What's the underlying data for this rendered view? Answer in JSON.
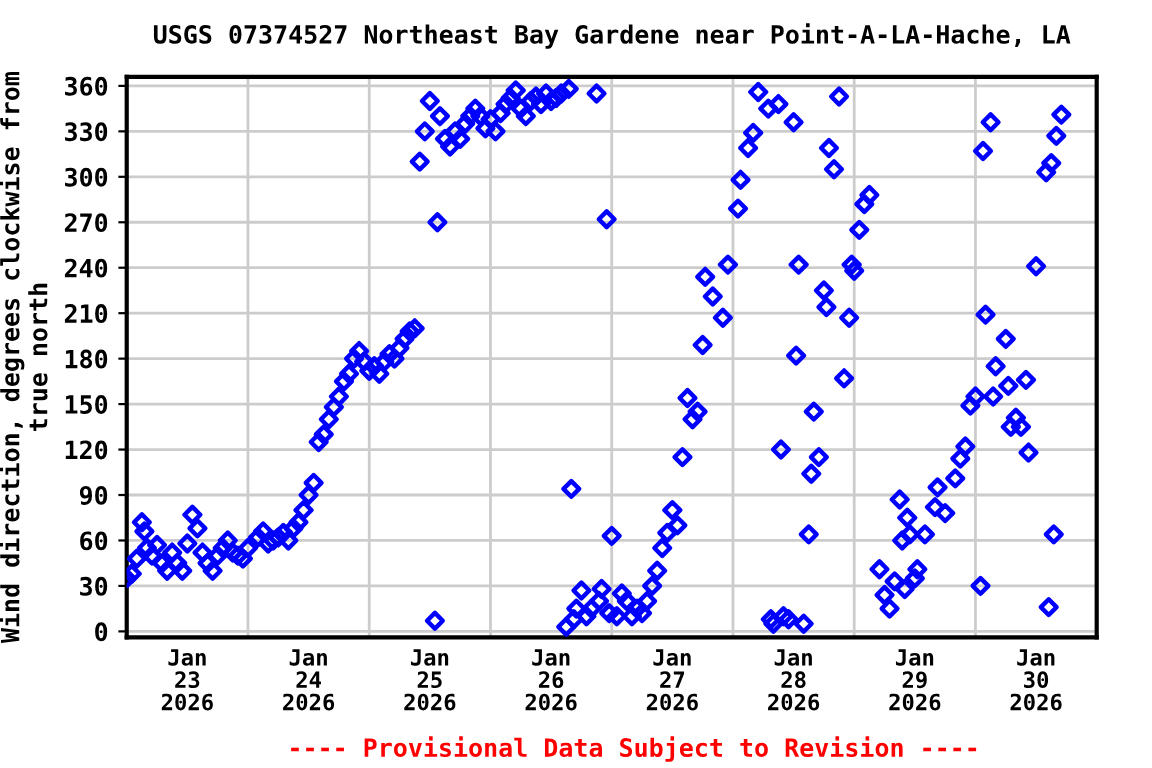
{
  "chart_data": {
    "type": "scatter",
    "title": "USGS 07374527 Northeast Bay Gardene near Point-A-LA-Hache, LA",
    "ylabel": "Wind direction, degrees clockwise from\ntrue north",
    "annotations": [
      "---- Provisional Data Subject to Revision ----"
    ],
    "marker": "diamond",
    "grid": true,
    "xlim": [
      "2026-01-23T00:00",
      "2026-01-31T00:00"
    ],
    "xticks": [
      {
        "value": "2026-01-23T00:00",
        "label": null
      },
      {
        "value": "2026-01-23T12:00",
        "label": "Jan\n23\n2026"
      },
      {
        "value": "2026-01-24T00:00",
        "label": null
      },
      {
        "value": "2026-01-24T12:00",
        "label": "Jan\n24\n2026"
      },
      {
        "value": "2026-01-25T00:00",
        "label": null
      },
      {
        "value": "2026-01-25T12:00",
        "label": "Jan\n25\n2026"
      },
      {
        "value": "2026-01-26T00:00",
        "label": null
      },
      {
        "value": "2026-01-26T12:00",
        "label": "Jan\n26\n2026"
      },
      {
        "value": "2026-01-27T00:00",
        "label": null
      },
      {
        "value": "2026-01-27T12:00",
        "label": "Jan\n27\n2026"
      },
      {
        "value": "2026-01-28T00:00",
        "label": null
      },
      {
        "value": "2026-01-28T12:00",
        "label": "Jan\n28\n2026"
      },
      {
        "value": "2026-01-29T00:00",
        "label": null
      },
      {
        "value": "2026-01-29T12:00",
        "label": "Jan\n29\n2026"
      },
      {
        "value": "2026-01-30T00:00",
        "label": null
      },
      {
        "value": "2026-01-30T12:00",
        "label": "Jan\n30\n2026"
      },
      {
        "value": "2026-01-31T00:00",
        "label": null
      }
    ],
    "ylim": [
      -4,
      366
    ],
    "yticks": [
      0,
      30,
      60,
      90,
      120,
      150,
      180,
      210,
      240,
      270,
      300,
      330,
      360
    ],
    "series": [
      {
        "color": "#0000ff",
        "x": [
          "2026-01-23T00:00",
          "2026-01-23T01:00",
          "2026-01-23T02:00",
          "2026-01-23T03:00",
          "2026-01-23T03:30",
          "2026-01-23T04:00",
          "2026-01-23T05:00",
          "2026-01-23T06:00",
          "2026-01-23T07:00",
          "2026-01-23T08:00",
          "2026-01-23T09:00",
          "2026-01-23T10:00",
          "2026-01-23T11:00",
          "2026-01-23T12:00",
          "2026-01-23T13:00",
          "2026-01-23T14:00",
          "2026-01-23T15:00",
          "2026-01-23T16:00",
          "2026-01-23T17:00",
          "2026-01-23T18:00",
          "2026-01-23T19:00",
          "2026-01-23T20:00",
          "2026-01-23T21:00",
          "2026-01-23T22:00",
          "2026-01-23T23:00",
          "2026-01-24T00:00",
          "2026-01-24T02:00",
          "2026-01-24T03:00",
          "2026-01-24T04:00",
          "2026-01-24T05:00",
          "2026-01-24T06:00",
          "2026-01-24T07:00",
          "2026-01-24T08:00",
          "2026-01-24T09:00",
          "2026-01-24T10:00",
          "2026-01-24T11:00",
          "2026-01-24T12:00",
          "2026-01-24T13:00",
          "2026-01-24T14:00",
          "2026-01-24T15:00",
          "2026-01-24T16:00",
          "2026-01-24T17:00",
          "2026-01-24T18:00",
          "2026-01-24T19:00",
          "2026-01-24T20:00",
          "2026-01-24T21:00",
          "2026-01-24T22:00",
          "2026-01-24T23:00",
          "2026-01-25T00:00",
          "2026-01-25T01:00",
          "2026-01-25T02:00",
          "2026-01-25T03:00",
          "2026-01-25T04:00",
          "2026-01-25T05:00",
          "2026-01-25T06:00",
          "2026-01-25T07:00",
          "2026-01-25T08:00",
          "2026-01-25T09:00",
          "2026-01-25T10:00",
          "2026-01-25T11:00",
          "2026-01-25T12:00",
          "2026-01-25T13:00",
          "2026-01-25T13:30",
          "2026-01-25T14:00",
          "2026-01-25T15:00",
          "2026-01-25T16:00",
          "2026-01-25T17:00",
          "2026-01-25T18:00",
          "2026-01-25T19:00",
          "2026-01-25T20:00",
          "2026-01-25T21:00",
          "2026-01-25T22:00",
          "2026-01-25T23:00",
          "2026-01-26T00:00",
          "2026-01-26T01:00",
          "2026-01-26T02:00",
          "2026-01-26T03:00",
          "2026-01-26T04:00",
          "2026-01-26T05:00",
          "2026-01-26T06:00",
          "2026-01-26T07:00",
          "2026-01-26T08:00",
          "2026-01-26T09:00",
          "2026-01-26T10:00",
          "2026-01-26T11:00",
          "2026-01-26T12:00",
          "2026-01-26T13:00",
          "2026-01-26T14:00",
          "2026-01-26T15:00",
          "2026-01-26T15:30",
          "2026-01-26T16:00",
          "2026-01-26T16:30",
          "2026-01-26T17:00",
          "2026-01-26T18:00",
          "2026-01-26T19:00",
          "2026-01-26T20:00",
          "2026-01-26T21:00",
          "2026-01-26T21:30",
          "2026-01-26T22:00",
          "2026-01-26T23:00",
          "2026-01-26T23:30",
          "2026-01-27T00:00",
          "2026-01-27T01:00",
          "2026-01-27T02:00",
          "2026-01-27T03:00",
          "2026-01-27T04:00",
          "2026-01-27T05:00",
          "2026-01-27T06:00",
          "2026-01-27T07:00",
          "2026-01-27T08:00",
          "2026-01-27T09:00",
          "2026-01-27T10:00",
          "2026-01-27T11:00",
          "2026-01-27T12:00",
          "2026-01-27T13:00",
          "2026-01-27T14:00",
          "2026-01-27T15:00",
          "2026-01-27T16:00",
          "2026-01-27T17:00",
          "2026-01-27T18:00",
          "2026-01-27T18:30",
          "2026-01-27T20:00",
          "2026-01-27T22:00",
          "2026-01-27T23:00",
          "2026-01-28T01:00",
          "2026-01-28T01:30",
          "2026-01-28T03:00",
          "2026-01-28T04:00",
          "2026-01-28T05:00",
          "2026-01-28T07:00",
          "2026-01-28T07:30",
          "2026-01-28T08:00",
          "2026-01-28T09:00",
          "2026-01-28T09:30",
          "2026-01-28T10:00",
          "2026-01-28T11:00",
          "2026-01-28T12:00",
          "2026-01-28T12:30",
          "2026-01-28T13:00",
          "2026-01-28T14:00",
          "2026-01-28T15:00",
          "2026-01-28T15:30",
          "2026-01-28T16:00",
          "2026-01-28T17:00",
          "2026-01-28T18:00",
          "2026-01-28T18:30",
          "2026-01-28T19:00",
          "2026-01-28T20:00",
          "2026-01-28T21:00",
          "2026-01-28T22:00",
          "2026-01-28T23:00",
          "2026-01-28T23:30",
          "2026-01-29T00:00",
          "2026-01-29T01:00",
          "2026-01-29T02:00",
          "2026-01-29T03:00",
          "2026-01-29T05:00",
          "2026-01-29T06:00",
          "2026-01-29T07:00",
          "2026-01-29T08:00",
          "2026-01-29T09:00",
          "2026-01-29T09:30",
          "2026-01-29T10:00",
          "2026-01-29T10:30",
          "2026-01-29T11:00",
          "2026-01-29T12:00",
          "2026-01-29T12:30",
          "2026-01-29T14:00",
          "2026-01-29T16:00",
          "2026-01-29T16:30",
          "2026-01-29T18:00",
          "2026-01-29T20:00",
          "2026-01-29T21:00",
          "2026-01-29T22:00",
          "2026-01-29T23:00",
          "2026-01-30T00:00",
          "2026-01-30T01:00",
          "2026-01-30T01:30",
          "2026-01-30T02:00",
          "2026-01-30T03:00",
          "2026-01-30T03:30",
          "2026-01-30T04:00",
          "2026-01-30T06:00",
          "2026-01-30T06:30",
          "2026-01-30T07:00",
          "2026-01-30T08:00",
          "2026-01-30T09:00",
          "2026-01-30T10:00",
          "2026-01-30T10:30",
          "2026-01-30T12:00",
          "2026-01-30T14:00",
          "2026-01-30T14:30",
          "2026-01-30T15:00",
          "2026-01-30T15:30",
          "2026-01-30T16:00",
          "2026-01-30T17:00"
        ],
        "values": [
          35,
          38,
          48,
          72,
          66,
          55,
          50,
          57,
          45,
          40,
          52,
          45,
          40,
          58,
          77,
          68,
          52,
          45,
          40,
          50,
          55,
          60,
          52,
          50,
          48,
          55,
          62,
          66,
          58,
          60,
          62,
          65,
          60,
          68,
          72,
          80,
          90,
          98,
          125,
          130,
          140,
          148,
          155,
          165,
          170,
          180,
          185,
          178,
          172,
          175,
          170,
          178,
          183,
          180,
          187,
          193,
          198,
          200,
          310,
          330,
          350,
          7,
          270,
          340,
          325,
          320,
          330,
          325,
          335,
          340,
          345,
          340,
          332,
          338,
          330,
          342,
          348,
          352,
          357,
          345,
          340,
          350,
          353,
          348,
          355,
          350,
          352,
          355,
          3,
          358,
          94,
          8,
          15,
          27,
          10,
          15,
          355,
          20,
          28,
          272,
          12,
          63,
          10,
          25,
          20,
          10,
          15,
          12,
          20,
          30,
          40,
          55,
          65,
          80,
          70,
          115,
          154,
          140,
          145,
          189,
          234,
          221,
          207,
          242,
          279,
          298,
          319,
          329,
          356,
          345,
          8,
          5,
          348,
          120,
          10,
          8,
          336,
          182,
          242,
          5,
          64,
          104,
          145,
          115,
          225,
          214,
          319,
          305,
          353,
          167,
          207,
          242,
          238,
          265,
          282,
          288,
          41,
          24,
          15,
          33,
          87,
          60,
          28,
          75,
          64,
          35,
          41,
          64,
          82,
          95,
          78,
          101,
          114,
          122,
          149,
          155,
          30,
          317,
          209,
          336,
          155,
          175,
          193,
          162,
          135,
          141,
          135,
          166,
          118,
          241,
          303,
          16,
          309,
          64,
          327,
          341
        ]
      }
    ]
  }
}
